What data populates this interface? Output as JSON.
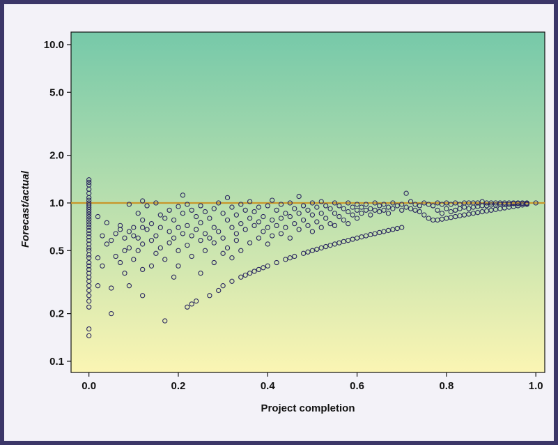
{
  "chart_data": {
    "type": "scatter",
    "title": "",
    "xlabel": "Project completion",
    "ylabel": "Forecast/actual",
    "xlim": [
      -0.04,
      1.02
    ],
    "ylim": [
      0.085,
      12.0
    ],
    "y_scale": "log",
    "x_ticks": [
      0.0,
      0.2,
      0.4,
      0.6,
      0.8,
      1.0
    ],
    "x_tick_labels": [
      "0.0",
      "0.2",
      "0.4",
      "0.6",
      "0.8",
      "1.0"
    ],
    "y_ticks": [
      0.1,
      0.2,
      0.5,
      1.0,
      2.0,
      5.0,
      10.0
    ],
    "y_tick_labels": [
      "0.1",
      "0.2",
      "0.5",
      "1.0",
      "2.0",
      "5.0",
      "10.0"
    ],
    "reference_line": {
      "y": 1.0,
      "color": "#c8962a"
    },
    "background_gradient": {
      "top": "#76c9a9",
      "bottom": "#fbf5b3"
    },
    "frame_color": "#3b3668",
    "marker_color": "#2a2660",
    "points": [
      [
        0.0,
        1.4
      ],
      [
        0.0,
        1.35
      ],
      [
        0.0,
        1.3
      ],
      [
        0.0,
        1.22
      ],
      [
        0.0,
        1.15
      ],
      [
        0.0,
        1.08
      ],
      [
        0.0,
        1.04
      ],
      [
        0.0,
        1.0
      ],
      [
        0.0,
        0.97
      ],
      [
        0.0,
        0.94
      ],
      [
        0.0,
        0.91
      ],
      [
        0.0,
        0.88
      ],
      [
        0.0,
        0.85
      ],
      [
        0.0,
        0.82
      ],
      [
        0.0,
        0.79
      ],
      [
        0.0,
        0.76
      ],
      [
        0.0,
        0.73
      ],
      [
        0.0,
        0.7
      ],
      [
        0.0,
        0.67
      ],
      [
        0.0,
        0.64
      ],
      [
        0.0,
        0.61
      ],
      [
        0.0,
        0.58
      ],
      [
        0.0,
        0.55
      ],
      [
        0.0,
        0.52
      ],
      [
        0.0,
        0.5
      ],
      [
        0.0,
        0.47
      ],
      [
        0.0,
        0.45
      ],
      [
        0.0,
        0.42
      ],
      [
        0.0,
        0.4
      ],
      [
        0.0,
        0.38
      ],
      [
        0.0,
        0.36
      ],
      [
        0.0,
        0.34
      ],
      [
        0.0,
        0.32
      ],
      [
        0.0,
        0.3
      ],
      [
        0.0,
        0.28
      ],
      [
        0.0,
        0.26
      ],
      [
        0.0,
        0.24
      ],
      [
        0.0,
        0.22
      ],
      [
        0.0,
        0.16
      ],
      [
        0.0,
        0.145
      ],
      [
        0.02,
        0.82
      ],
      [
        0.02,
        0.45
      ],
      [
        0.02,
        0.3
      ],
      [
        0.03,
        0.62
      ],
      [
        0.03,
        0.4
      ],
      [
        0.04,
        0.55
      ],
      [
        0.04,
        0.75
      ],
      [
        0.05,
        0.58
      ],
      [
        0.05,
        0.29
      ],
      [
        0.05,
        0.2
      ],
      [
        0.06,
        0.64
      ],
      [
        0.06,
        0.46
      ],
      [
        0.07,
        0.72
      ],
      [
        0.07,
        0.68
      ],
      [
        0.07,
        0.42
      ],
      [
        0.08,
        0.6
      ],
      [
        0.08,
        0.5
      ],
      [
        0.08,
        0.36
      ],
      [
        0.09,
        0.98
      ],
      [
        0.09,
        0.66
      ],
      [
        0.09,
        0.52
      ],
      [
        0.09,
        0.3
      ],
      [
        0.1,
        0.7
      ],
      [
        0.1,
        0.62
      ],
      [
        0.1,
        0.44
      ],
      [
        0.11,
        0.86
      ],
      [
        0.11,
        0.6
      ],
      [
        0.11,
        0.5
      ],
      [
        0.12,
        1.03
      ],
      [
        0.12,
        0.78
      ],
      [
        0.12,
        0.7
      ],
      [
        0.12,
        0.55
      ],
      [
        0.12,
        0.38
      ],
      [
        0.12,
        0.26
      ],
      [
        0.13,
        0.96
      ],
      [
        0.13,
        0.68
      ],
      [
        0.14,
        0.74
      ],
      [
        0.14,
        0.58
      ],
      [
        0.14,
        0.4
      ],
      [
        0.15,
        1.0
      ],
      [
        0.15,
        0.62
      ],
      [
        0.15,
        0.48
      ],
      [
        0.16,
        0.84
      ],
      [
        0.16,
        0.7
      ],
      [
        0.16,
        0.52
      ],
      [
        0.17,
        0.8
      ],
      [
        0.17,
        0.44
      ],
      [
        0.17,
        0.18
      ],
      [
        0.18,
        0.9
      ],
      [
        0.18,
        0.66
      ],
      [
        0.18,
        0.56
      ],
      [
        0.19,
        0.78
      ],
      [
        0.19,
        0.6
      ],
      [
        0.19,
        0.34
      ],
      [
        0.2,
        0.95
      ],
      [
        0.2,
        0.7
      ],
      [
        0.2,
        0.5
      ],
      [
        0.2,
        0.4
      ],
      [
        0.21,
        1.12
      ],
      [
        0.21,
        0.86
      ],
      [
        0.21,
        0.64
      ],
      [
        0.22,
        0.98
      ],
      [
        0.22,
        0.72
      ],
      [
        0.22,
        0.54
      ],
      [
        0.22,
        0.22
      ],
      [
        0.23,
        0.9
      ],
      [
        0.23,
        0.62
      ],
      [
        0.23,
        0.46
      ],
      [
        0.23,
        0.23
      ],
      [
        0.24,
        0.82
      ],
      [
        0.24,
        0.68
      ],
      [
        0.24,
        0.24
      ],
      [
        0.25,
        0.96
      ],
      [
        0.25,
        0.75
      ],
      [
        0.25,
        0.58
      ],
      [
        0.25,
        0.36
      ],
      [
        0.26,
        0.88
      ],
      [
        0.26,
        0.64
      ],
      [
        0.26,
        0.5
      ],
      [
        0.27,
        0.8
      ],
      [
        0.27,
        0.6
      ],
      [
        0.27,
        0.26
      ],
      [
        0.28,
        0.92
      ],
      [
        0.28,
        0.7
      ],
      [
        0.28,
        0.56
      ],
      [
        0.28,
        0.42
      ],
      [
        0.29,
        1.0
      ],
      [
        0.29,
        0.66
      ],
      [
        0.29,
        0.28
      ],
      [
        0.3,
        0.86
      ],
      [
        0.3,
        0.6
      ],
      [
        0.3,
        0.48
      ],
      [
        0.3,
        0.3
      ],
      [
        0.31,
        1.08
      ],
      [
        0.31,
        0.78
      ],
      [
        0.31,
        0.52
      ],
      [
        0.32,
        0.94
      ],
      [
        0.32,
        0.7
      ],
      [
        0.32,
        0.45
      ],
      [
        0.32,
        0.32
      ],
      [
        0.33,
        0.84
      ],
      [
        0.33,
        0.64
      ],
      [
        0.33,
        0.58
      ],
      [
        0.34,
        0.98
      ],
      [
        0.34,
        0.74
      ],
      [
        0.34,
        0.5
      ],
      [
        0.34,
        0.34
      ],
      [
        0.35,
        0.9
      ],
      [
        0.35,
        0.68
      ],
      [
        0.35,
        0.35
      ],
      [
        0.36,
        1.02
      ],
      [
        0.36,
        0.8
      ],
      [
        0.36,
        0.56
      ],
      [
        0.36,
        0.36
      ],
      [
        0.37,
        0.88
      ],
      [
        0.37,
        0.72
      ],
      [
        0.37,
        0.37
      ],
      [
        0.38,
        0.94
      ],
      [
        0.38,
        0.76
      ],
      [
        0.38,
        0.6
      ],
      [
        0.38,
        0.38
      ],
      [
        0.39,
        0.82
      ],
      [
        0.39,
        0.66
      ],
      [
        0.39,
        0.39
      ],
      [
        0.4,
        0.96
      ],
      [
        0.4,
        0.7
      ],
      [
        0.4,
        0.55
      ],
      [
        0.4,
        0.4
      ],
      [
        0.41,
        1.04
      ],
      [
        0.41,
        0.78
      ],
      [
        0.41,
        0.62
      ],
      [
        0.42,
        0.9
      ],
      [
        0.42,
        0.72
      ],
      [
        0.42,
        0.42
      ],
      [
        0.43,
        0.98
      ],
      [
        0.43,
        0.8
      ],
      [
        0.43,
        0.64
      ],
      [
        0.44,
        0.86
      ],
      [
        0.44,
        0.7
      ],
      [
        0.44,
        0.44
      ],
      [
        0.45,
        1.0
      ],
      [
        0.45,
        0.82
      ],
      [
        0.45,
        0.6
      ],
      [
        0.45,
        0.45
      ],
      [
        0.46,
        0.92
      ],
      [
        0.46,
        0.74
      ],
      [
        0.46,
        0.46
      ],
      [
        0.47,
        1.1
      ],
      [
        0.47,
        0.86
      ],
      [
        0.47,
        0.68
      ],
      [
        0.48,
        0.96
      ],
      [
        0.48,
        0.78
      ],
      [
        0.48,
        0.48
      ],
      [
        0.49,
        0.9
      ],
      [
        0.49,
        0.72
      ],
      [
        0.49,
        0.49
      ],
      [
        0.5,
        1.0
      ],
      [
        0.5,
        0.84
      ],
      [
        0.5,
        0.66
      ],
      [
        0.5,
        0.5
      ],
      [
        0.51,
        0.94
      ],
      [
        0.51,
        0.76
      ],
      [
        0.51,
        0.51
      ],
      [
        0.52,
        1.02
      ],
      [
        0.52,
        0.86
      ],
      [
        0.52,
        0.7
      ],
      [
        0.52,
        0.52
      ],
      [
        0.53,
        0.96
      ],
      [
        0.53,
        0.8
      ],
      [
        0.53,
        0.53
      ],
      [
        0.54,
        0.92
      ],
      [
        0.54,
        0.74
      ],
      [
        0.54,
        0.54
      ],
      [
        0.55,
        1.0
      ],
      [
        0.55,
        0.86
      ],
      [
        0.55,
        0.72
      ],
      [
        0.55,
        0.55
      ],
      [
        0.56,
        0.96
      ],
      [
        0.56,
        0.82
      ],
      [
        0.56,
        0.56
      ],
      [
        0.57,
        0.92
      ],
      [
        0.57,
        0.78
      ],
      [
        0.57,
        0.57
      ],
      [
        0.58,
        1.0
      ],
      [
        0.58,
        0.88
      ],
      [
        0.58,
        0.74
      ],
      [
        0.58,
        0.58
      ],
      [
        0.59,
        0.94
      ],
      [
        0.59,
        0.84
      ],
      [
        0.59,
        0.59
      ],
      [
        0.6,
        0.98
      ],
      [
        0.6,
        0.9
      ],
      [
        0.6,
        0.8
      ],
      [
        0.6,
        0.6
      ],
      [
        0.61,
        0.94
      ],
      [
        0.61,
        0.86
      ],
      [
        0.61,
        0.61
      ],
      [
        0.62,
        0.98
      ],
      [
        0.62,
        0.9
      ],
      [
        0.62,
        0.62
      ],
      [
        0.63,
        0.92
      ],
      [
        0.63,
        0.84
      ],
      [
        0.63,
        0.63
      ],
      [
        0.64,
        1.0
      ],
      [
        0.64,
        0.9
      ],
      [
        0.64,
        0.64
      ],
      [
        0.65,
        0.96
      ],
      [
        0.65,
        0.88
      ],
      [
        0.65,
        0.65
      ],
      [
        0.66,
        0.98
      ],
      [
        0.66,
        0.9
      ],
      [
        0.66,
        0.66
      ],
      [
        0.67,
        0.94
      ],
      [
        0.67,
        0.86
      ],
      [
        0.67,
        0.67
      ],
      [
        0.68,
        1.0
      ],
      [
        0.68,
        0.92
      ],
      [
        0.68,
        0.68
      ],
      [
        0.69,
        0.96
      ],
      [
        0.69,
        0.69
      ],
      [
        0.7,
        0.98
      ],
      [
        0.7,
        0.9
      ],
      [
        0.7,
        0.7
      ],
      [
        0.71,
        1.15
      ],
      [
        0.71,
        0.94
      ],
      [
        0.72,
        1.02
      ],
      [
        0.72,
        0.92
      ],
      [
        0.73,
        0.98
      ],
      [
        0.73,
        0.9
      ],
      [
        0.74,
        0.96
      ],
      [
        0.74,
        0.88
      ],
      [
        0.75,
        1.0
      ],
      [
        0.75,
        0.84
      ],
      [
        0.76,
        0.98
      ],
      [
        0.76,
        0.8
      ],
      [
        0.77,
        0.96
      ],
      [
        0.77,
        0.78
      ],
      [
        0.78,
        1.0
      ],
      [
        0.78,
        0.9
      ],
      [
        0.78,
        0.78
      ],
      [
        0.79,
        0.98
      ],
      [
        0.79,
        0.86
      ],
      [
        0.79,
        0.79
      ],
      [
        0.8,
        1.0
      ],
      [
        0.8,
        0.92
      ],
      [
        0.8,
        0.8
      ],
      [
        0.81,
        0.98
      ],
      [
        0.81,
        0.88
      ],
      [
        0.81,
        0.81
      ],
      [
        0.82,
        1.0
      ],
      [
        0.82,
        0.9
      ],
      [
        0.82,
        0.82
      ],
      [
        0.83,
        0.98
      ],
      [
        0.83,
        0.92
      ],
      [
        0.83,
        0.83
      ],
      [
        0.84,
        1.0
      ],
      [
        0.84,
        0.94
      ],
      [
        0.84,
        0.84
      ],
      [
        0.85,
        1.0
      ],
      [
        0.85,
        0.92
      ],
      [
        0.85,
        0.85
      ],
      [
        0.86,
        1.0
      ],
      [
        0.86,
        0.94
      ],
      [
        0.86,
        0.86
      ],
      [
        0.87,
        1.0
      ],
      [
        0.87,
        0.95
      ],
      [
        0.87,
        0.87
      ],
      [
        0.88,
        1.02
      ],
      [
        0.88,
        0.96
      ],
      [
        0.88,
        0.88
      ],
      [
        0.89,
        1.0
      ],
      [
        0.89,
        0.96
      ],
      [
        0.89,
        0.89
      ],
      [
        0.9,
        1.0
      ],
      [
        0.9,
        0.97
      ],
      [
        0.9,
        0.9
      ],
      [
        0.91,
        1.0
      ],
      [
        0.91,
        0.97
      ],
      [
        0.91,
        0.91
      ],
      [
        0.92,
        1.0
      ],
      [
        0.92,
        0.98
      ],
      [
        0.92,
        0.92
      ],
      [
        0.93,
        1.0
      ],
      [
        0.93,
        0.98
      ],
      [
        0.93,
        0.93
      ],
      [
        0.94,
        1.0
      ],
      [
        0.94,
        0.98
      ],
      [
        0.94,
        0.94
      ],
      [
        0.95,
        1.0
      ],
      [
        0.95,
        0.99
      ],
      [
        0.95,
        0.95
      ],
      [
        0.96,
        1.0
      ],
      [
        0.96,
        0.99
      ],
      [
        0.96,
        0.96
      ],
      [
        0.97,
        1.0
      ],
      [
        0.97,
        0.99
      ],
      [
        0.97,
        0.97
      ],
      [
        0.98,
        1.0
      ],
      [
        0.98,
        0.99
      ],
      [
        0.98,
        0.98
      ],
      [
        1.0,
        1.0
      ]
    ]
  }
}
